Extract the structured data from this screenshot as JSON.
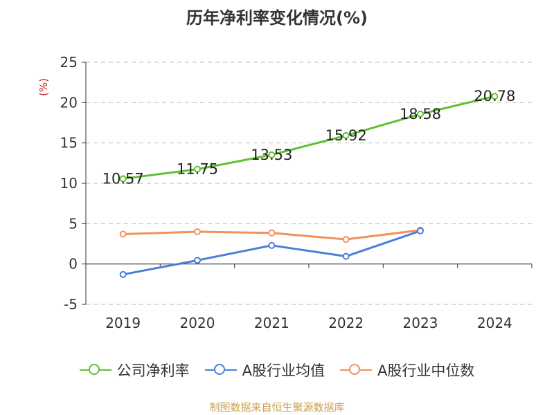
{
  "page_title": "历年净利率变化情况(%)",
  "source": "制图数据来自恒生聚源数据库",
  "chart_data": {
    "type": "line",
    "title": "历年净利率变化情况(%)",
    "ylabel": "(%)",
    "xlabel": "",
    "categories": [
      "2019",
      "2020",
      "2021",
      "2022",
      "2023",
      "2024"
    ],
    "ylim": [
      -5,
      25
    ],
    "yticks": [
      -5,
      0,
      5,
      10,
      15,
      20,
      25
    ],
    "grid": true,
    "legend_position": "bottom",
    "series": [
      {
        "name": "公司净利率",
        "color": "#5ec22f",
        "values": [
          10.57,
          11.75,
          13.53,
          15.92,
          18.58,
          20.78
        ],
        "labels": [
          "10.57",
          "11.75",
          "13.53",
          "15.92",
          "18.58",
          "20.78"
        ]
      },
      {
        "name": "A股行业均值",
        "color": "#4a7fd9",
        "values": [
          -1.3,
          0.45,
          2.3,
          0.95,
          4.1,
          null
        ]
      },
      {
        "name": "A股行业中位数",
        "color": "#f4905a",
        "values": [
          3.7,
          4.0,
          3.85,
          3.05,
          4.2,
          null
        ]
      }
    ]
  }
}
